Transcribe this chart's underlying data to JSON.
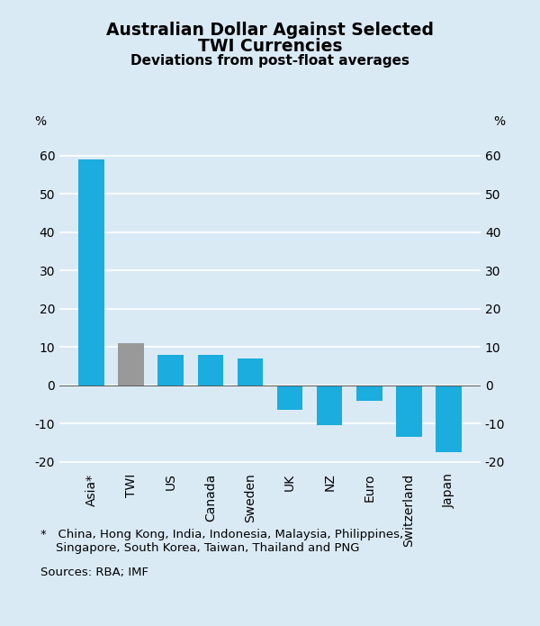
{
  "categories": [
    "Asia*",
    "TWI",
    "US",
    "Canada",
    "Sweden",
    "UK",
    "NZ",
    "Euro",
    "Switzerland",
    "Japan"
  ],
  "values": [
    59,
    11,
    8,
    8,
    7,
    -6.5,
    -10.5,
    -4,
    -13.5,
    -17.5
  ],
  "bar_colors": [
    "#1aadde",
    "#999999",
    "#1aadde",
    "#1aadde",
    "#1aadde",
    "#1aadde",
    "#1aadde",
    "#1aadde",
    "#1aadde",
    "#1aadde"
  ],
  "title_line1": "Australian Dollar Against Selected",
  "title_line2": "TWI Currencies",
  "subtitle": "Deviations from post-float averages",
  "ylabel_left": "%",
  "ylabel_right": "%",
  "ylim": [
    -22,
    68
  ],
  "yticks": [
    -20,
    -10,
    0,
    10,
    20,
    30,
    40,
    50,
    60
  ],
  "background_color": "#daeaf5",
  "plot_background_color": "#daeaf5",
  "grid_color": "#ffffff",
  "footnote_star": "*   China, Hong Kong, India, Indonesia, Malaysia, Philippines,\n    Singapore, South Korea, Taiwan, Thailand and PNG",
  "footnote_sources": "Sources: RBA; IMF",
  "title_fontsize": 13.5,
  "subtitle_fontsize": 11,
  "tick_fontsize": 10,
  "label_fontsize": 10,
  "footnote_fontsize": 9.5
}
